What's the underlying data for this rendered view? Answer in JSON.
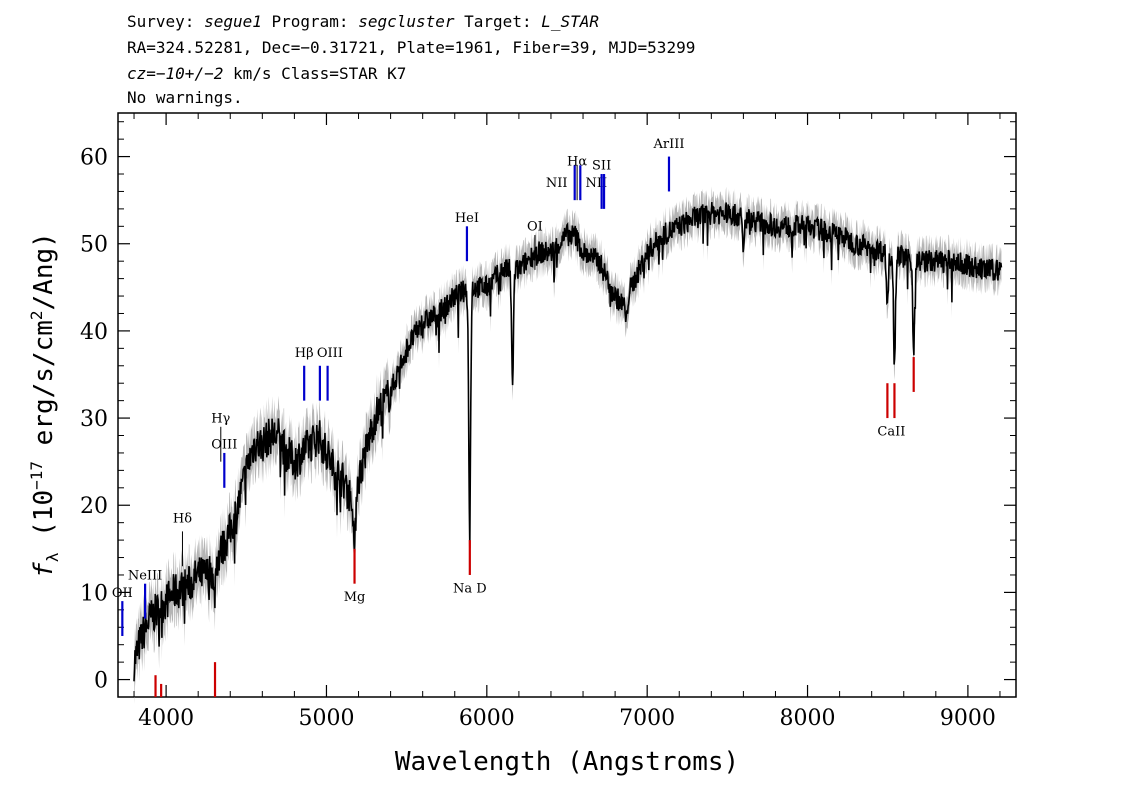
{
  "header": {
    "line1_a": "Survey: ",
    "survey": "segue1",
    "line1_b": " Program: ",
    "program": "segcluster",
    "line1_c": " Target: ",
    "target": "L_STAR",
    "line2": "RA=324.52281, Dec=−0.31721, Plate=1961, Fiber=39, MJD=53299",
    "cz_label": "cz",
    "cz_eq": "=",
    "cz_value": "−10+/−2",
    "cz_rest": " km/s Class=STAR K7",
    "line4": "No warnings."
  },
  "chart_data": {
    "type": "line",
    "xlabel": "Wavelength (Angstroms)",
    "ylabel": "fλ (10⁻¹⁷ erg/s/cm²/Ang)",
    "xlim": [
      3700,
      9300
    ],
    "ylim": [
      -2,
      65
    ],
    "x_ticks": [
      4000,
      5000,
      6000,
      7000,
      8000,
      9000
    ],
    "y_ticks": [
      0,
      10,
      20,
      30,
      40,
      50,
      60
    ],
    "colors": {
      "flux": "#000000",
      "error": "#b4b4b4",
      "emission": "#0000cc",
      "absorption": "#cc0000"
    },
    "flux_continuum": [
      [
        3800,
        2
      ],
      [
        3850,
        5
      ],
      [
        3900,
        7
      ],
      [
        3950,
        8
      ],
      [
        4000,
        9
      ],
      [
        4050,
        10
      ],
      [
        4100,
        10.5
      ],
      [
        4150,
        11
      ],
      [
        4200,
        12
      ],
      [
        4250,
        12
      ],
      [
        4300,
        13
      ],
      [
        4350,
        15
      ],
      [
        4400,
        17
      ],
      [
        4450,
        20
      ],
      [
        4500,
        24
      ],
      [
        4550,
        27
      ],
      [
        4600,
        27
      ],
      [
        4650,
        28
      ],
      [
        4700,
        28
      ],
      [
        4750,
        26
      ],
      [
        4800,
        25
      ],
      [
        4850,
        26
      ],
      [
        4900,
        27
      ],
      [
        4950,
        28
      ],
      [
        5000,
        26
      ],
      [
        5050,
        24
      ],
      [
        5100,
        23
      ],
      [
        5150,
        21
      ],
      [
        5200,
        23
      ],
      [
        5300,
        30
      ],
      [
        5400,
        33
      ],
      [
        5500,
        38
      ],
      [
        5600,
        41
      ],
      [
        5700,
        42
      ],
      [
        5800,
        44
      ],
      [
        5900,
        45
      ],
      [
        6000,
        45
      ],
      [
        6100,
        47
      ],
      [
        6200,
        47
      ],
      [
        6300,
        49
      ],
      [
        6400,
        49
      ],
      [
        6500,
        51
      ],
      [
        6550,
        51
      ],
      [
        6600,
        49
      ],
      [
        6700,
        48
      ],
      [
        6800,
        44
      ],
      [
        6850,
        43
      ],
      [
        6900,
        45
      ],
      [
        7000,
        49
      ],
      [
        7100,
        51
      ],
      [
        7200,
        52
      ],
      [
        7300,
        53
      ],
      [
        7400,
        53.5
      ],
      [
        7500,
        53.5
      ],
      [
        7600,
        53
      ],
      [
        7700,
        52.5
      ],
      [
        7800,
        52
      ],
      [
        7900,
        52
      ],
      [
        8000,
        52
      ],
      [
        8100,
        51.5
      ],
      [
        8200,
        51
      ],
      [
        8300,
        50
      ],
      [
        8400,
        49.5
      ],
      [
        8500,
        49
      ],
      [
        8600,
        48.5
      ],
      [
        8700,
        48
      ],
      [
        8800,
        48
      ],
      [
        8900,
        48
      ],
      [
        9000,
        47.5
      ],
      [
        9100,
        47
      ],
      [
        9200,
        47
      ]
    ],
    "absorption_features": [
      {
        "x": 5175,
        "depth": 8
      },
      {
        "x": 5893,
        "depth": 27
      },
      {
        "x": 6160,
        "depth": 13
      },
      {
        "x": 6870,
        "depth": 3
      },
      {
        "x": 7600,
        "depth": 4
      },
      {
        "x": 8498,
        "depth": 6
      },
      {
        "x": 8542,
        "depth": 12
      },
      {
        "x": 8662,
        "depth": 10
      },
      {
        "x": 4300,
        "depth": 4
      }
    ],
    "emission_lines": [
      {
        "label": "OII",
        "x": 3727,
        "y1": 5,
        "y2": 9,
        "color": "emission",
        "lab_y": 9.5
      },
      {
        "label": "NeIII",
        "x": 3869,
        "y1": 7,
        "y2": 11,
        "color": "emission",
        "lab_y": 11.5
      },
      {
        "label": "Hδ",
        "x": 4102,
        "y1": 13,
        "y2": 17,
        "color": "emission",
        "lab_y": 18,
        "thin": true
      },
      {
        "label": "Hγ",
        "x": 4341,
        "y1": 25,
        "y2": 29,
        "color": "emission",
        "lab_y": 29.5,
        "thin": true
      },
      {
        "label": "OIII",
        "x": 4363,
        "y1": 22,
        "y2": 26,
        "color": "emission",
        "lab_y": 26.5
      },
      {
        "label": "Hβ",
        "x": 4861,
        "y1": 32,
        "y2": 36,
        "color": "emission",
        "lab_y": 37
      },
      {
        "label": "OIII",
        "x": 4959,
        "y1": 32,
        "y2": 36,
        "color": "emission",
        "lab_y": 37,
        "label_dx": 10
      },
      {
        "label": "",
        "x": 5007,
        "y1": 32,
        "y2": 36,
        "color": "emission",
        "lab_y": 37
      },
      {
        "label": "HeI",
        "x": 5876,
        "y1": 48,
        "y2": 52,
        "color": "emission",
        "lab_y": 52.5
      },
      {
        "label": "OI",
        "x": 6300,
        "y1": 47,
        "y2": 51,
        "color": "emission",
        "lab_y": 51.5,
        "thin": true
      },
      {
        "label": "NII",
        "x": 6548,
        "y1": 55,
        "y2": 59,
        "color": "emission",
        "lab_y": 56.5,
        "label_dx": -18
      },
      {
        "label": "Hα",
        "x": 6563,
        "y1": 55,
        "y2": 59,
        "color": "emission",
        "lab_y": 59,
        "thin": true
      },
      {
        "label": "NII",
        "x": 6583,
        "y1": 55,
        "y2": 59,
        "color": "emission",
        "lab_y": 56.5,
        "label_dx": 16
      },
      {
        "label": "SII",
        "x": 6716,
        "y1": 54,
        "y2": 58,
        "color": "emission",
        "lab_y": 58.5
      },
      {
        "label": "",
        "x": 6731,
        "y1": 54,
        "y2": 58,
        "color": "emission",
        "lab_y": 58.5
      },
      {
        "label": "ArIII",
        "x": 7136,
        "y1": 56,
        "y2": 60,
        "color": "emission",
        "lab_y": 61
      }
    ],
    "absorption_lines": [
      {
        "label": "",
        "x": 3934,
        "y1": -2,
        "y2": 0.5
      },
      {
        "label": "",
        "x": 3969,
        "y1": -2,
        "y2": -0.5
      },
      {
        "label": "",
        "x": 4305,
        "y1": -2,
        "y2": 2
      },
      {
        "label": "Mg",
        "x": 5175,
        "y1": 11,
        "y2": 15,
        "lab_y": 9
      },
      {
        "label": "Na D",
        "x": 5894,
        "y1": 12,
        "y2": 16,
        "lab_y": 10
      },
      {
        "label": "CaII",
        "x": 8498,
        "y1": 30,
        "y2": 34,
        "lab_y": 28,
        "label_dx": 0
      },
      {
        "label": "",
        "x": 8542,
        "y1": 30,
        "y2": 34
      },
      {
        "label": "",
        "x": 8662,
        "y1": 33,
        "y2": 37
      }
    ]
  }
}
